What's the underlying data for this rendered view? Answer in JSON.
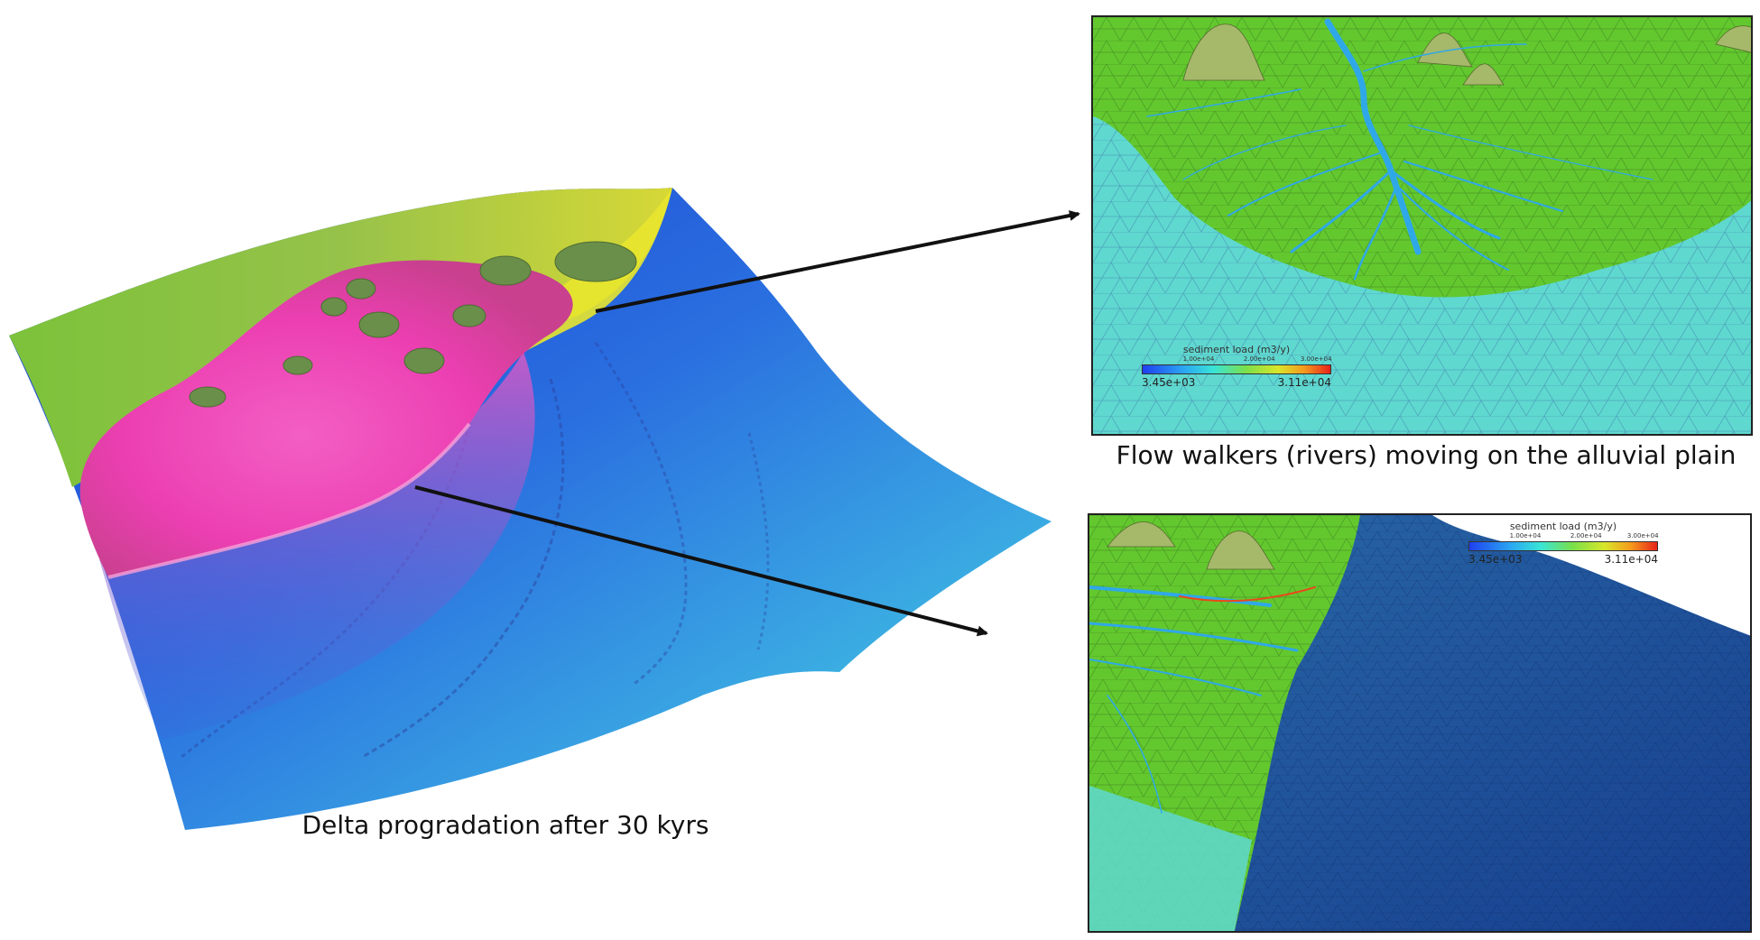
{
  "captions": {
    "main": "Delta progradation after 30 kyrs",
    "top_panel": "Flow walkers (rivers) moving on the alluvial plain"
  },
  "legend_top": {
    "title": "sediment load (m3/y)",
    "ticks": [
      "1.00e+04",
      "2.00e+04",
      "3.00e+04"
    ],
    "min": "3.45e+03",
    "max": "3.11e+04"
  },
  "legend_bottom": {
    "title": "sediment load (m3/y)",
    "ticks": [
      "1.00e+04",
      "2.00e+04",
      "3.00e+04"
    ],
    "min": "3.45e+03",
    "max": "3.11e+04"
  },
  "colors": {
    "deep_sea": "#1a4fd6",
    "shallow_sea": "#3fd9d4",
    "plain": "#6fd23a",
    "delta": "#ee3fb3",
    "coast": "#e6e033",
    "mesh_sea": "#5fd8d0",
    "mesh_plain": "#5cc22a",
    "mesh_deep": "#1e4a9a",
    "river": "#2fa8e8"
  }
}
